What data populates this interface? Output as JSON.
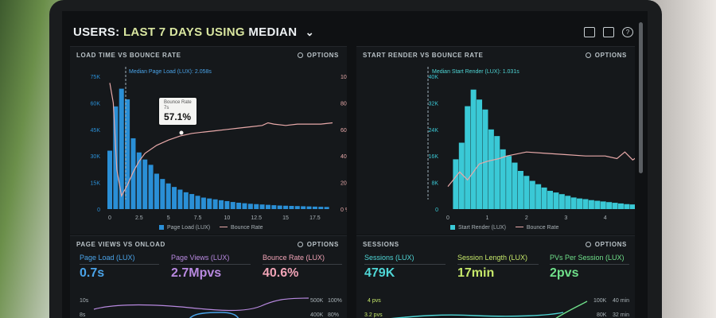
{
  "header": {
    "prefix": "USERS:",
    "range": "LAST 7 DAYS",
    "using": "USING",
    "metric": "MEDIAN"
  },
  "colors": {
    "bars_left": "#2a8fd6",
    "bars_right": "#3ac9d6",
    "line_pink": "#e8a9a9",
    "kpi_blue": "#4aa3e8",
    "kpi_purple": "#b889e0",
    "kpi_pink": "#f0a3b6",
    "kpi_cyan": "#4fd6d6",
    "kpi_lime": "#c6e86a",
    "kpi_green": "#6fe08a"
  },
  "panel1": {
    "title": "LOAD TIME VS BOUNCE RATE",
    "options": "OPTIONS",
    "median_label": "Median Page Load (LUX): 2.058s",
    "tooltip_title": "Bounce Rate",
    "tooltip_sub": "7s",
    "tooltip_value": "57.1%",
    "y_left": [
      "75K",
      "60K",
      "45K",
      "30K",
      "15K",
      "0"
    ],
    "y_right": [
      "100 %",
      "80 %",
      "60 %",
      "40 %",
      "20 %",
      "0 %"
    ],
    "x_ticks": [
      "0",
      "2.5",
      "5",
      "7.5",
      "10",
      "12.5",
      "15",
      "17.5"
    ],
    "legend_bars": "Page Load (LUX)",
    "legend_line": "Bounce Rate"
  },
  "panel2": {
    "title": "START RENDER VS BOUNCE RATE",
    "options": "OPTIONS",
    "median_label": "Median Start Render (LUX): 1.031s",
    "y_left": [
      "40K",
      "32K",
      "24K",
      "16K",
      "8K",
      "0"
    ],
    "y_right": [
      "100 %",
      "80 %",
      "60 %",
      "40 %",
      "20 %",
      "0 %"
    ],
    "x_ticks": [
      "0",
      "1",
      "2",
      "3",
      "4",
      "5"
    ],
    "legend_bars": "Start Render (LUX)",
    "legend_line": "Bounce Rate"
  },
  "panel3": {
    "title": "PAGE VIEWS VS ONLOAD",
    "options": "OPTIONS",
    "kpis": [
      {
        "label": "Page Load (LUX)",
        "value": "0.7s"
      },
      {
        "label": "Page Views (LUX)",
        "value": "2.7Mpvs"
      },
      {
        "label": "Bounce Rate (LUX)",
        "value": "40.6%"
      }
    ],
    "y_right_a": [
      "500K",
      "400K"
    ],
    "y_right_b": [
      "100%",
      "80%"
    ],
    "y_left": [
      "10s",
      "8s"
    ]
  },
  "panel4": {
    "title": "SESSIONS",
    "options": "OPTIONS",
    "kpis": [
      {
        "label": "Sessions (LUX)",
        "value": "479K"
      },
      {
        "label": "Session Length (LUX)",
        "value": "17min"
      },
      {
        "label": "PVs Per Session (LUX)",
        "value": "2pvs"
      }
    ],
    "y_left": [
      "4 pvs",
      "3.2 pvs"
    ],
    "y_right_a": [
      "100K",
      "80K"
    ],
    "y_right_b": [
      "40 min",
      "32 min"
    ]
  },
  "chart_data": [
    {
      "type": "bar",
      "title": "LOAD TIME VS BOUNCE RATE",
      "xlim": [
        0,
        19
      ],
      "ylim": [
        0,
        75000
      ],
      "y2lim": [
        0,
        100
      ],
      "series": [
        {
          "name": "Page Load (LUX)",
          "type": "bar",
          "x": [
            0,
            0.5,
            1,
            1.5,
            2,
            2.5,
            3,
            3.5,
            4,
            4.5,
            5,
            5.5,
            6,
            6.5,
            7,
            7.5,
            8,
            8.5,
            9,
            9.5,
            10,
            10.5,
            11,
            11.5,
            12,
            12.5,
            13,
            13.5,
            14,
            14.5,
            15,
            15.5,
            16,
            16.5,
            17,
            17.5,
            18,
            18.5
          ],
          "values": [
            33000,
            58000,
            68000,
            62000,
            40000,
            32000,
            28000,
            25000,
            20000,
            17000,
            14500,
            12500,
            11000,
            9500,
            8500,
            7500,
            6500,
            6000,
            5500,
            5000,
            4500,
            4000,
            3600,
            3300,
            3000,
            2800,
            2600,
            2400,
            2200,
            2000,
            1900,
            1800,
            1700,
            1600,
            1500,
            1400,
            1300,
            1200
          ]
        },
        {
          "name": "Bounce Rate",
          "type": "line",
          "x": [
            0,
            0.3,
            0.6,
            1,
            1.5,
            2,
            2.5,
            3,
            4,
            5,
            6,
            7,
            8,
            9,
            10,
            11,
            12,
            13,
            13.5,
            14,
            15,
            16,
            17,
            18,
            19
          ],
          "values": [
            95,
            80,
            30,
            10,
            18,
            28,
            36,
            42,
            48,
            52,
            55,
            57,
            58,
            59,
            60,
            61,
            62,
            63,
            65,
            64,
            63,
            64,
            64,
            64,
            65
          ]
        }
      ]
    },
    {
      "type": "bar",
      "title": "START RENDER VS BOUNCE RATE",
      "xlim": [
        0,
        5.2
      ],
      "ylim": [
        0,
        40000
      ],
      "y2lim": [
        0,
        100
      ],
      "series": [
        {
          "name": "Start Render (LUX)",
          "type": "bar",
          "x": [
            0.2,
            0.35,
            0.5,
            0.65,
            0.8,
            0.95,
            1.1,
            1.25,
            1.4,
            1.55,
            1.7,
            1.85,
            2.0,
            2.15,
            2.3,
            2.45,
            2.6,
            2.75,
            2.9,
            3.05,
            3.2,
            3.35,
            3.5,
            3.65,
            3.8,
            3.95,
            4.1,
            4.25,
            4.4,
            4.55,
            4.7
          ],
          "values": [
            15000,
            20000,
            31000,
            36000,
            33000,
            30000,
            24000,
            22000,
            18000,
            16000,
            14000,
            11500,
            10000,
            8500,
            7500,
            6500,
            5500,
            5000,
            4500,
            4000,
            3500,
            3200,
            3000,
            2700,
            2500,
            2300,
            2100,
            1900,
            1700,
            1500,
            1400
          ]
        },
        {
          "name": "Bounce Rate",
          "type": "line",
          "x": [
            0,
            0.3,
            0.5,
            0.8,
            1,
            1.3,
            1.5,
            2,
            2.5,
            3,
            3.5,
            4,
            4.3,
            4.5,
            4.7,
            4.85,
            5.0
          ],
          "values": [
            17,
            28,
            22,
            34,
            36,
            38,
            40,
            43,
            42,
            41,
            40,
            40,
            38,
            43,
            37,
            40,
            12
          ]
        }
      ]
    }
  ]
}
